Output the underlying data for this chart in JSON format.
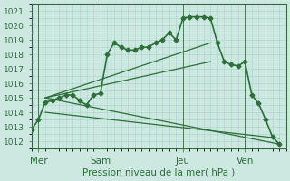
{
  "xlabel": "Pression niveau de la mer( hPa )",
  "bg_color": "#cce8e0",
  "grid_color": "#a8d4ca",
  "line_color": "#2d6e3a",
  "ylim": [
    1011.5,
    1021.5
  ],
  "yticks": [
    1012,
    1013,
    1014,
    1015,
    1016,
    1017,
    1018,
    1019,
    1020,
    1021
  ],
  "day_labels": [
    "Mer",
    "Sam",
    "Jeu",
    "Ven"
  ],
  "day_positions": [
    1,
    10,
    22,
    31
  ],
  "xlim": [
    0,
    37
  ],
  "vline_positions": [
    1,
    10,
    22,
    31
  ],
  "main_series": {
    "x": [
      0,
      1,
      2,
      3,
      4,
      5,
      6,
      7,
      8,
      9,
      10,
      11,
      12,
      13,
      14,
      15,
      16,
      17,
      18,
      19,
      20,
      21,
      22,
      23,
      24,
      25,
      26,
      27,
      28,
      29,
      30,
      31,
      32,
      33,
      34,
      35,
      36
    ],
    "y": [
      1012.8,
      1013.5,
      1014.7,
      1014.8,
      1015.0,
      1015.2,
      1015.2,
      1014.8,
      1014.5,
      1015.2,
      1015.3,
      1018.0,
      1018.8,
      1018.5,
      1018.3,
      1018.3,
      1018.5,
      1018.5,
      1018.8,
      1019.0,
      1019.5,
      1019.0,
      1020.5,
      1020.6,
      1020.6,
      1020.6,
      1020.5,
      1018.8,
      1017.5,
      1017.3,
      1017.2,
      1017.5,
      1015.2,
      1014.6,
      1013.5,
      1012.3,
      1011.8
    ],
    "marker": "D",
    "markersize": 2.5,
    "linewidth": 1.2
  },
  "fan_lines": [
    {
      "x": [
        2,
        26
      ],
      "y": [
        1015.0,
        1018.8
      ]
    },
    {
      "x": [
        2,
        26
      ],
      "y": [
        1015.0,
        1017.5
      ]
    },
    {
      "x": [
        2,
        36
      ],
      "y": [
        1015.0,
        1011.8
      ]
    },
    {
      "x": [
        2,
        36
      ],
      "y": [
        1014.0,
        1012.2
      ]
    }
  ],
  "label_fontsize": 7.5,
  "tick_fontsize": 6.5
}
